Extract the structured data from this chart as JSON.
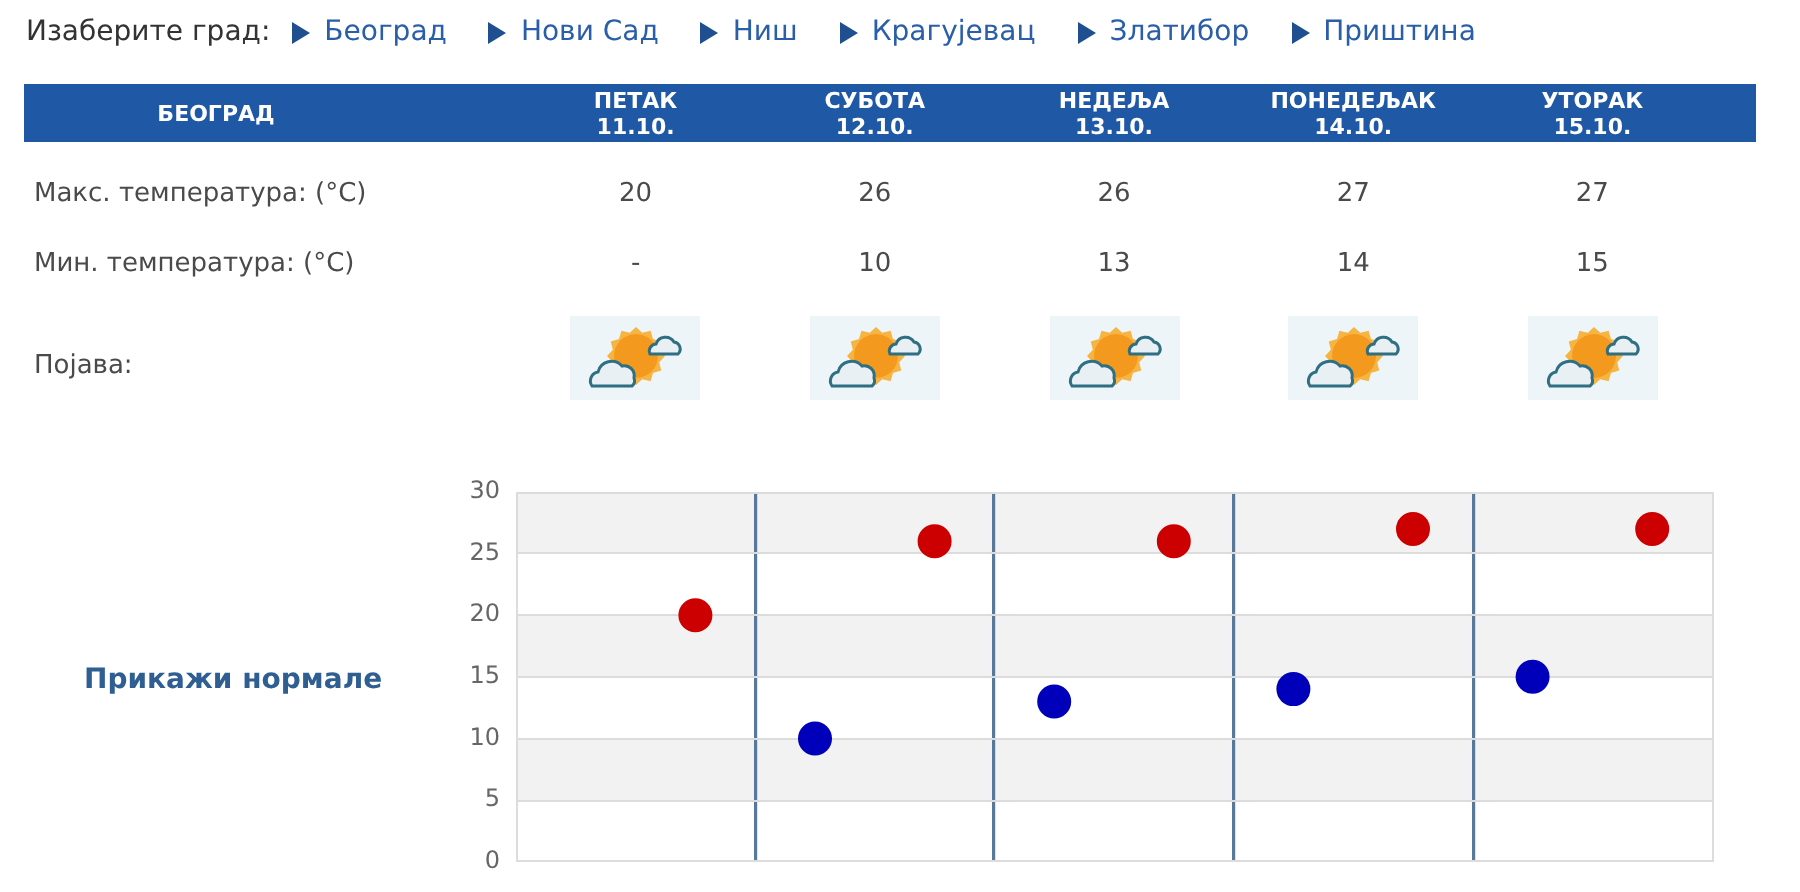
{
  "chart_data": {
    "type": "scatter",
    "title": "БЕОГРАД",
    "categories": [
      null,
      null,
      null,
      null,
      null
    ],
    "series": [
      {
        "color": "#cc0000",
        "values": [
          20,
          26,
          26,
          27,
          27
        ],
        "value_labels": [
          "20",
          "26",
          "26",
          "27",
          "27"
        ]
      },
      {
        "color": "#0000bb",
        "values": [
          null,
          10,
          13,
          14,
          15
        ],
        "value_labels": [
          "-",
          "10",
          "13",
          "14",
          "15"
        ]
      }
    ],
    "ylim": [
      0,
      30
    ],
    "yticks": [
      0,
      5,
      10,
      15,
      20,
      25,
      30
    ],
    "grid": true,
    "marker": "circle",
    "tick_labels": "y",
    "annotations": [
      "Изаберите град:",
      "Београд",
      "Нови Сад",
      "Ниш",
      "Крагујевац",
      "Златибор",
      "Приштина",
      "ПЕТАК 11.10.",
      "СУБОТА 12.10.",
      "НЕДЕЉА 13.10.",
      "ПОНЕДЕЉАК 14.10.",
      "УТОРАК 15.10.",
      "Макс. температура: (°C)",
      "Мин. температура: (°C)",
      "Појава:",
      "Прикажи нормале"
    ]
  }
}
